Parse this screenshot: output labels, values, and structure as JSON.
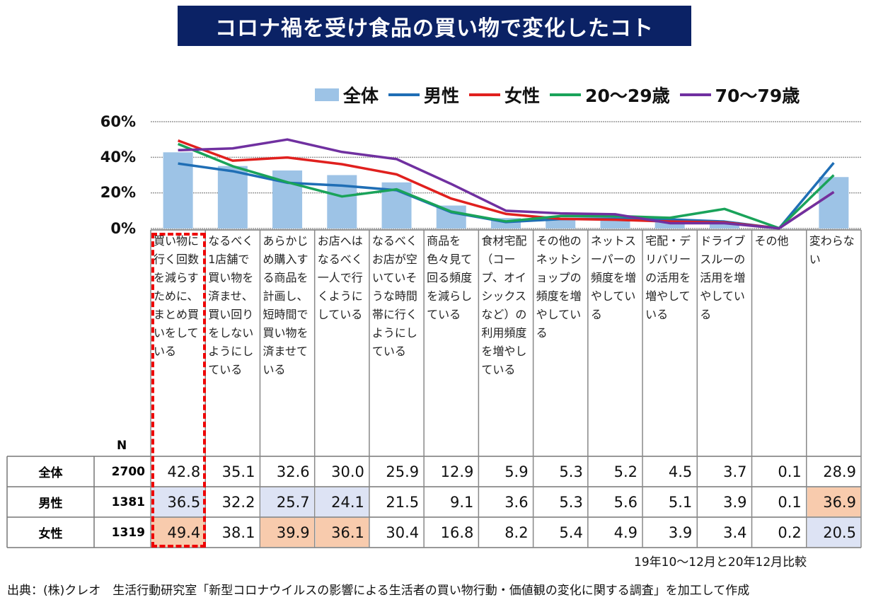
{
  "chart_data": {
    "type": "bar+line",
    "title": "コロナ禍を受け食品の買い物で変化したコト",
    "ylim": [
      0,
      60
    ],
    "yticks": [
      "0%",
      "20%",
      "40%",
      "60%"
    ],
    "grid": true,
    "legend_position": "top",
    "categories": [
      "買い物に行く回数を減らすために、まとめ買いをしている",
      "なるべく1店舗で買い物を済ませ、買い回りをしないようにしている",
      "あらかじめ購入する商品を計画し、短時間で買い物を済ませている",
      "お店へはなるべく一人で行くようにしている",
      "なるべくお店が空いていそうな時間帯に行くようにしている",
      "商品を色々見て回る頻度を減らしている",
      "食材宅配（コープ、オイシックスなど）の利用頻度を増やしている",
      "その他のネットショップの頻度を増やしている",
      "ネットスーパーの頻度を増やしている",
      "宅配・デリバリーの活用を増やしている",
      "ドライブスルーの活用を増やしている",
      "その他",
      "変わらない"
    ],
    "series": [
      {
        "name": "全体",
        "kind": "bar",
        "color": "#9dc3e6",
        "values": [
          42.8,
          35.1,
          32.6,
          30.0,
          25.9,
          12.9,
          5.9,
          5.3,
          5.2,
          4.5,
          3.7,
          0.1,
          28.9
        ]
      },
      {
        "name": "男性",
        "kind": "line",
        "color": "#1f6eb5",
        "values": [
          36.5,
          32.2,
          25.7,
          24.1,
          21.5,
          9.1,
          3.6,
          5.3,
          5.6,
          5.1,
          3.9,
          0.1,
          36.9
        ]
      },
      {
        "name": "女性",
        "kind": "line",
        "color": "#e0201e",
        "values": [
          49.4,
          38.1,
          39.9,
          36.1,
          30.4,
          16.8,
          8.2,
          5.4,
          4.9,
          3.9,
          3.4,
          0.2,
          20.5
        ]
      },
      {
        "name": "20～29歳",
        "kind": "line",
        "color": "#1aa35a",
        "values": [
          47.5,
          35,
          26,
          18,
          22,
          9.5,
          4,
          7,
          7,
          6,
          11,
          0.2,
          30
        ]
      },
      {
        "name": "70～79歳",
        "kind": "line",
        "color": "#7030a0",
        "values": [
          44,
          45,
          50,
          43,
          39,
          25,
          10,
          8.5,
          8,
          3,
          3,
          0.1,
          20.5
        ]
      }
    ]
  },
  "table": {
    "n_header": "N",
    "rows": [
      {
        "label": "全体",
        "n": "2700",
        "values": [
          "42.8",
          "35.1",
          "32.6",
          "30.0",
          "25.9",
          "12.9",
          "5.9",
          "5.3",
          "5.2",
          "4.5",
          "3.7",
          "0.1",
          "28.9"
        ],
        "highlight": [
          "",
          "",
          "",
          "",
          "",
          "",
          "",
          "",
          "",
          "",
          "",
          "",
          ""
        ]
      },
      {
        "label": "男性",
        "n": "1381",
        "values": [
          "36.5",
          "32.2",
          "25.7",
          "24.1",
          "21.5",
          "9.1",
          "3.6",
          "5.3",
          "5.6",
          "5.1",
          "3.9",
          "0.1",
          "36.9"
        ],
        "highlight": [
          "blue",
          "",
          "blue",
          "blue",
          "",
          "",
          "",
          "",
          "",
          "",
          "",
          "",
          "orange"
        ]
      },
      {
        "label": "女性",
        "n": "1319",
        "values": [
          "49.4",
          "38.1",
          "39.9",
          "36.1",
          "30.4",
          "16.8",
          "8.2",
          "5.4",
          "4.9",
          "3.9",
          "3.4",
          "0.2",
          "20.5"
        ],
        "highlight": [
          "orange",
          "",
          "orange",
          "orange",
          "",
          "",
          "",
          "",
          "",
          "",
          "",
          "",
          "blue"
        ]
      }
    ],
    "highlight_colors": {
      "blue": "#dde3f4",
      "orange": "#f8cbad"
    }
  },
  "note": "19年10～12月と20年12月比較",
  "source": "出典：(株)クレオ　生活行動研究室「新型コロナウイルスの影響による生活者の買い物行動・価値観の変化に関する調査」を加工して作成"
}
